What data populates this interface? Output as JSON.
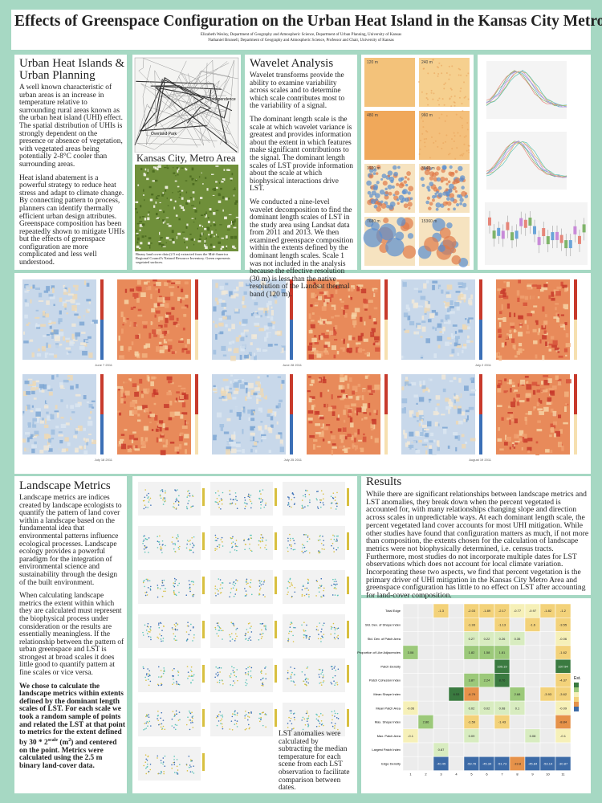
{
  "header": {
    "title": "Effects of Greenspace Configuration on the Urban Heat Island in the Kansas City Metro Area",
    "authors": [
      "Elizabeth Wesley, Department of Geography and Atmospheric Science, Department of Urban Planning, University of Kansas",
      "Nathaniel Brunsell, Department of Geography and Atmospheric Science, Professor and Chair, University of Kansas"
    ]
  },
  "intro": {
    "heading": "Urban Heat Islands & Urban Planning",
    "paragraphs": [
      "A well known characteristic of urban areas is an increase in temperature relative to surrounding rural areas known as the urban heat island (UHI) effect. The spatial distribution of UHIs is strongly dependent on the presence or absence of vegetation, with vegetated areas being potentially 2-8°C cooler than surrounding areas.",
      "Heat island abatement is a powerful strategy to reduce heat stress and adapt to climate change. By connecting pattern to process, planners can identify thermally efficient urban design attributes. Greenspace composition has been repeatedly shown to mitigate UHIs but the effects of greenspace configuration are more complicated and less well understood."
    ]
  },
  "map": {
    "label": "Kansas City, Metro Area",
    "place_labels": [
      "Independence",
      "Overland Park"
    ],
    "caption": "Binary land cover data (2.5 m) extracted from the Mid-America Regional Council's Natural Resource Inventory. Green represents vegetated surfaces."
  },
  "wavelet": {
    "heading": "Wavelet Analysis",
    "paragraphs": [
      "Wavelet transforms provide the ability to examine variability across scales and to determine which scale contributes most to the variability of a signal.",
      "The dominant length scale is the scale at which wavelet variance is greatest and provides information about the extent in which features make significant contributions to the signal. The dominant length scales of LST provide information about the scale at which biophysical interactions drive LST.",
      "We conducted a nine-level wavelet decomposition to find the dominant length scales of LST in the study area using Landsat data from 2011 and 2013. We then examined greenspace composition within the extents defined by the dominant length scales. Scale 1 was not included in the analysis because the effective resolution (30 m) is less than the native resolution of the Landsat thermal band (120 m)."
    ],
    "scales": [
      "120 m",
      "240 m",
      "480 m",
      "960 m",
      "1920 m",
      "3840 m",
      "7680 m",
      "15360 m"
    ]
  },
  "lst_maps": {
    "dates": [
      "June 7 2011",
      "June 28 2011",
      "July 2 2011",
      "July 18 2011",
      "July 25 2011",
      "August 19 2011"
    ]
  },
  "landscape": {
    "heading": "Landscape Metrics",
    "paragraphs": [
      "Landscape metrics are indices created by landscape ecologists to quantify the pattern of land cover within a landscape based on the fundamental idea that environmental patterns influence ecological processes. Landscape ecology provides a powerful paradigm for the integration of environmental science and sustainability through the design of the built environment.",
      "When calculating landscape metrics the extent within which they are calculated must represent the biophysical process under consideration or the results are essentially meaningless. If the relationship between the pattern of urban greenspace and LST is strongest at broad scales it does little good to quantify pattern at fine scales or vice versa."
    ],
    "method": [
      "We chose to calculate the landscape metrics within extents defined by the dominant length scales of LST. For each scale we took a random sample of points and related the LST at that point to metrics for the extent defined by 30 * 2",
      "scale",
      " (m",
      "2",
      ") and centered on the point. Metrics were calculated using the 2.5 m binary land-cover data."
    ]
  },
  "anomaly_note": "LST anomalies were calculated by subtracting the median temperature for each scene from each LST observation to facilitate comparison between dates.",
  "results": {
    "heading": "Results",
    "paragraph": "While there are significant relationships between landscape metrics and LST anomalies, they break down when the percent vegetated is accounted for, with many relationships changing slope and direction across scales in unpredictable ways. At each dominant length scale, the percent vegetated land cover accounts for most UHI mitigation. While other studies have found that configuration matters as much, if not more than composition, the extents chosen for the calculation of landscape metrics were not biophysically determined, i.e. census tracts. Furthermore, most studies do not incorporate multiple dates for LST observations which does not account for local climate variation. Incorporating these two aspects, we find that percent vegetation is the primary driver of UHI mitigation in the Kansas City Metro Area and greenspace configuration has little to no effect on LST after accounting for land-cover composition."
  },
  "heatmap": {
    "legend_title": "Est.",
    "columns": [
      1,
      2,
      3,
      4,
      5,
      6,
      7,
      8,
      9,
      10,
      11
    ],
    "rows": [
      "Total Edge",
      "Std. Dev. of Shape Index",
      "Std. Dev. of Patch Area",
      "Proportion of Like Adjacencies",
      "Patch Density",
      "Patch Cohesion Index",
      "Mean Shape Index",
      "Mean Patch Area",
      "Max. Shape Index",
      "Max. Patch Area",
      "Largest Patch Index",
      "Edge Density"
    ],
    "values": [
      [
        null,
        null,
        -1.3,
        null,
        -2.03,
        -1.89,
        -2.17,
        -0.77,
        -0.97,
        -1.82,
        -1.2
      ],
      [
        null,
        null,
        null,
        null,
        -1.93,
        null,
        -1.13,
        null,
        -1.6,
        null,
        -3.55
      ],
      [
        null,
        null,
        null,
        null,
        0.27,
        0.22,
        0.26,
        0.35,
        null,
        null,
        -0.06
      ],
      [
        3.08,
        null,
        null,
        null,
        1.82,
        1.58,
        1.81,
        null,
        null,
        null,
        -1.62
      ],
      [
        null,
        null,
        null,
        null,
        null,
        null,
        109.19,
        null,
        null,
        null,
        107.94
      ],
      [
        null,
        null,
        null,
        null,
        3.87,
        2.24,
        8.76,
        null,
        null,
        null,
        -4.37
      ],
      [
        null,
        null,
        null,
        6.53,
        -6.79,
        null,
        null,
        2.68,
        null,
        -3.93,
        -3.62
      ],
      [
        -0.06,
        null,
        null,
        null,
        0.02,
        0.02,
        0.08,
        0.1,
        null,
        null,
        -0.09
      ],
      [
        null,
        2.86,
        null,
        null,
        -1.59,
        null,
        -1.43,
        null,
        null,
        null,
        -8.84
      ],
      [
        -0.1,
        null,
        null,
        null,
        0.09,
        null,
        null,
        null,
        0.08,
        null,
        -0.1
      ],
      [
        null,
        null,
        0.87,
        null,
        null,
        null,
        null,
        null,
        null,
        null,
        null
      ],
      [
        null,
        null,
        -40.45,
        null,
        -59.76,
        -45.34,
        -51.73,
        -19.8,
        -45.84,
        -53.14,
        -30.87
      ]
    ]
  }
}
